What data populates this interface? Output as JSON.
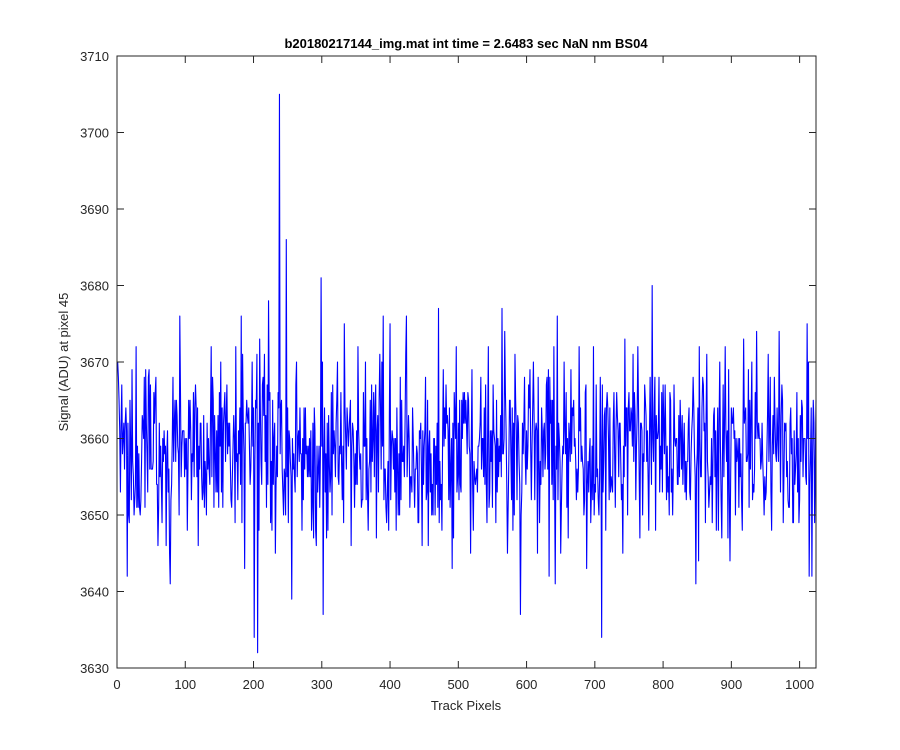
{
  "chart_data": {
    "type": "line",
    "title": "b20180217144_img.mat int time = 2.6483 sec  NaN nm BS04",
    "xlabel": "Track Pixels",
    "ylabel": "Signal (ADU) at pixel 45",
    "xlim": [
      0,
      1024
    ],
    "ylim": [
      3630,
      3710
    ],
    "xticks": [
      0,
      100,
      200,
      300,
      400,
      500,
      600,
      700,
      800,
      900,
      1000
    ],
    "yticks": [
      3630,
      3640,
      3650,
      3660,
      3670,
      3680,
      3690,
      3700,
      3710
    ],
    "grid": false,
    "line_color": "#0000ff",
    "series": [
      {
        "x_start": 1,
        "x_step": 1,
        "n_points": 1024,
        "values_note_removed": true,
        "spikes": [
          {
            "x": 15,
            "y": 3642
          },
          {
            "x": 78,
            "y": 3641
          },
          {
            "x": 201,
            "y": 3634
          },
          {
            "x": 206,
            "y": 3632
          },
          {
            "x": 222,
            "y": 3678
          },
          {
            "x": 238,
            "y": 3705
          },
          {
            "x": 248,
            "y": 3686
          },
          {
            "x": 256,
            "y": 3639
          },
          {
            "x": 299,
            "y": 3681
          },
          {
            "x": 302,
            "y": 3637
          },
          {
            "x": 471,
            "y": 3677
          },
          {
            "x": 564,
            "y": 3677
          },
          {
            "x": 591,
            "y": 3637
          },
          {
            "x": 710,
            "y": 3634
          },
          {
            "x": 784,
            "y": 3680
          },
          {
            "x": 1011,
            "y": 3675
          }
        ]
      }
    ]
  }
}
